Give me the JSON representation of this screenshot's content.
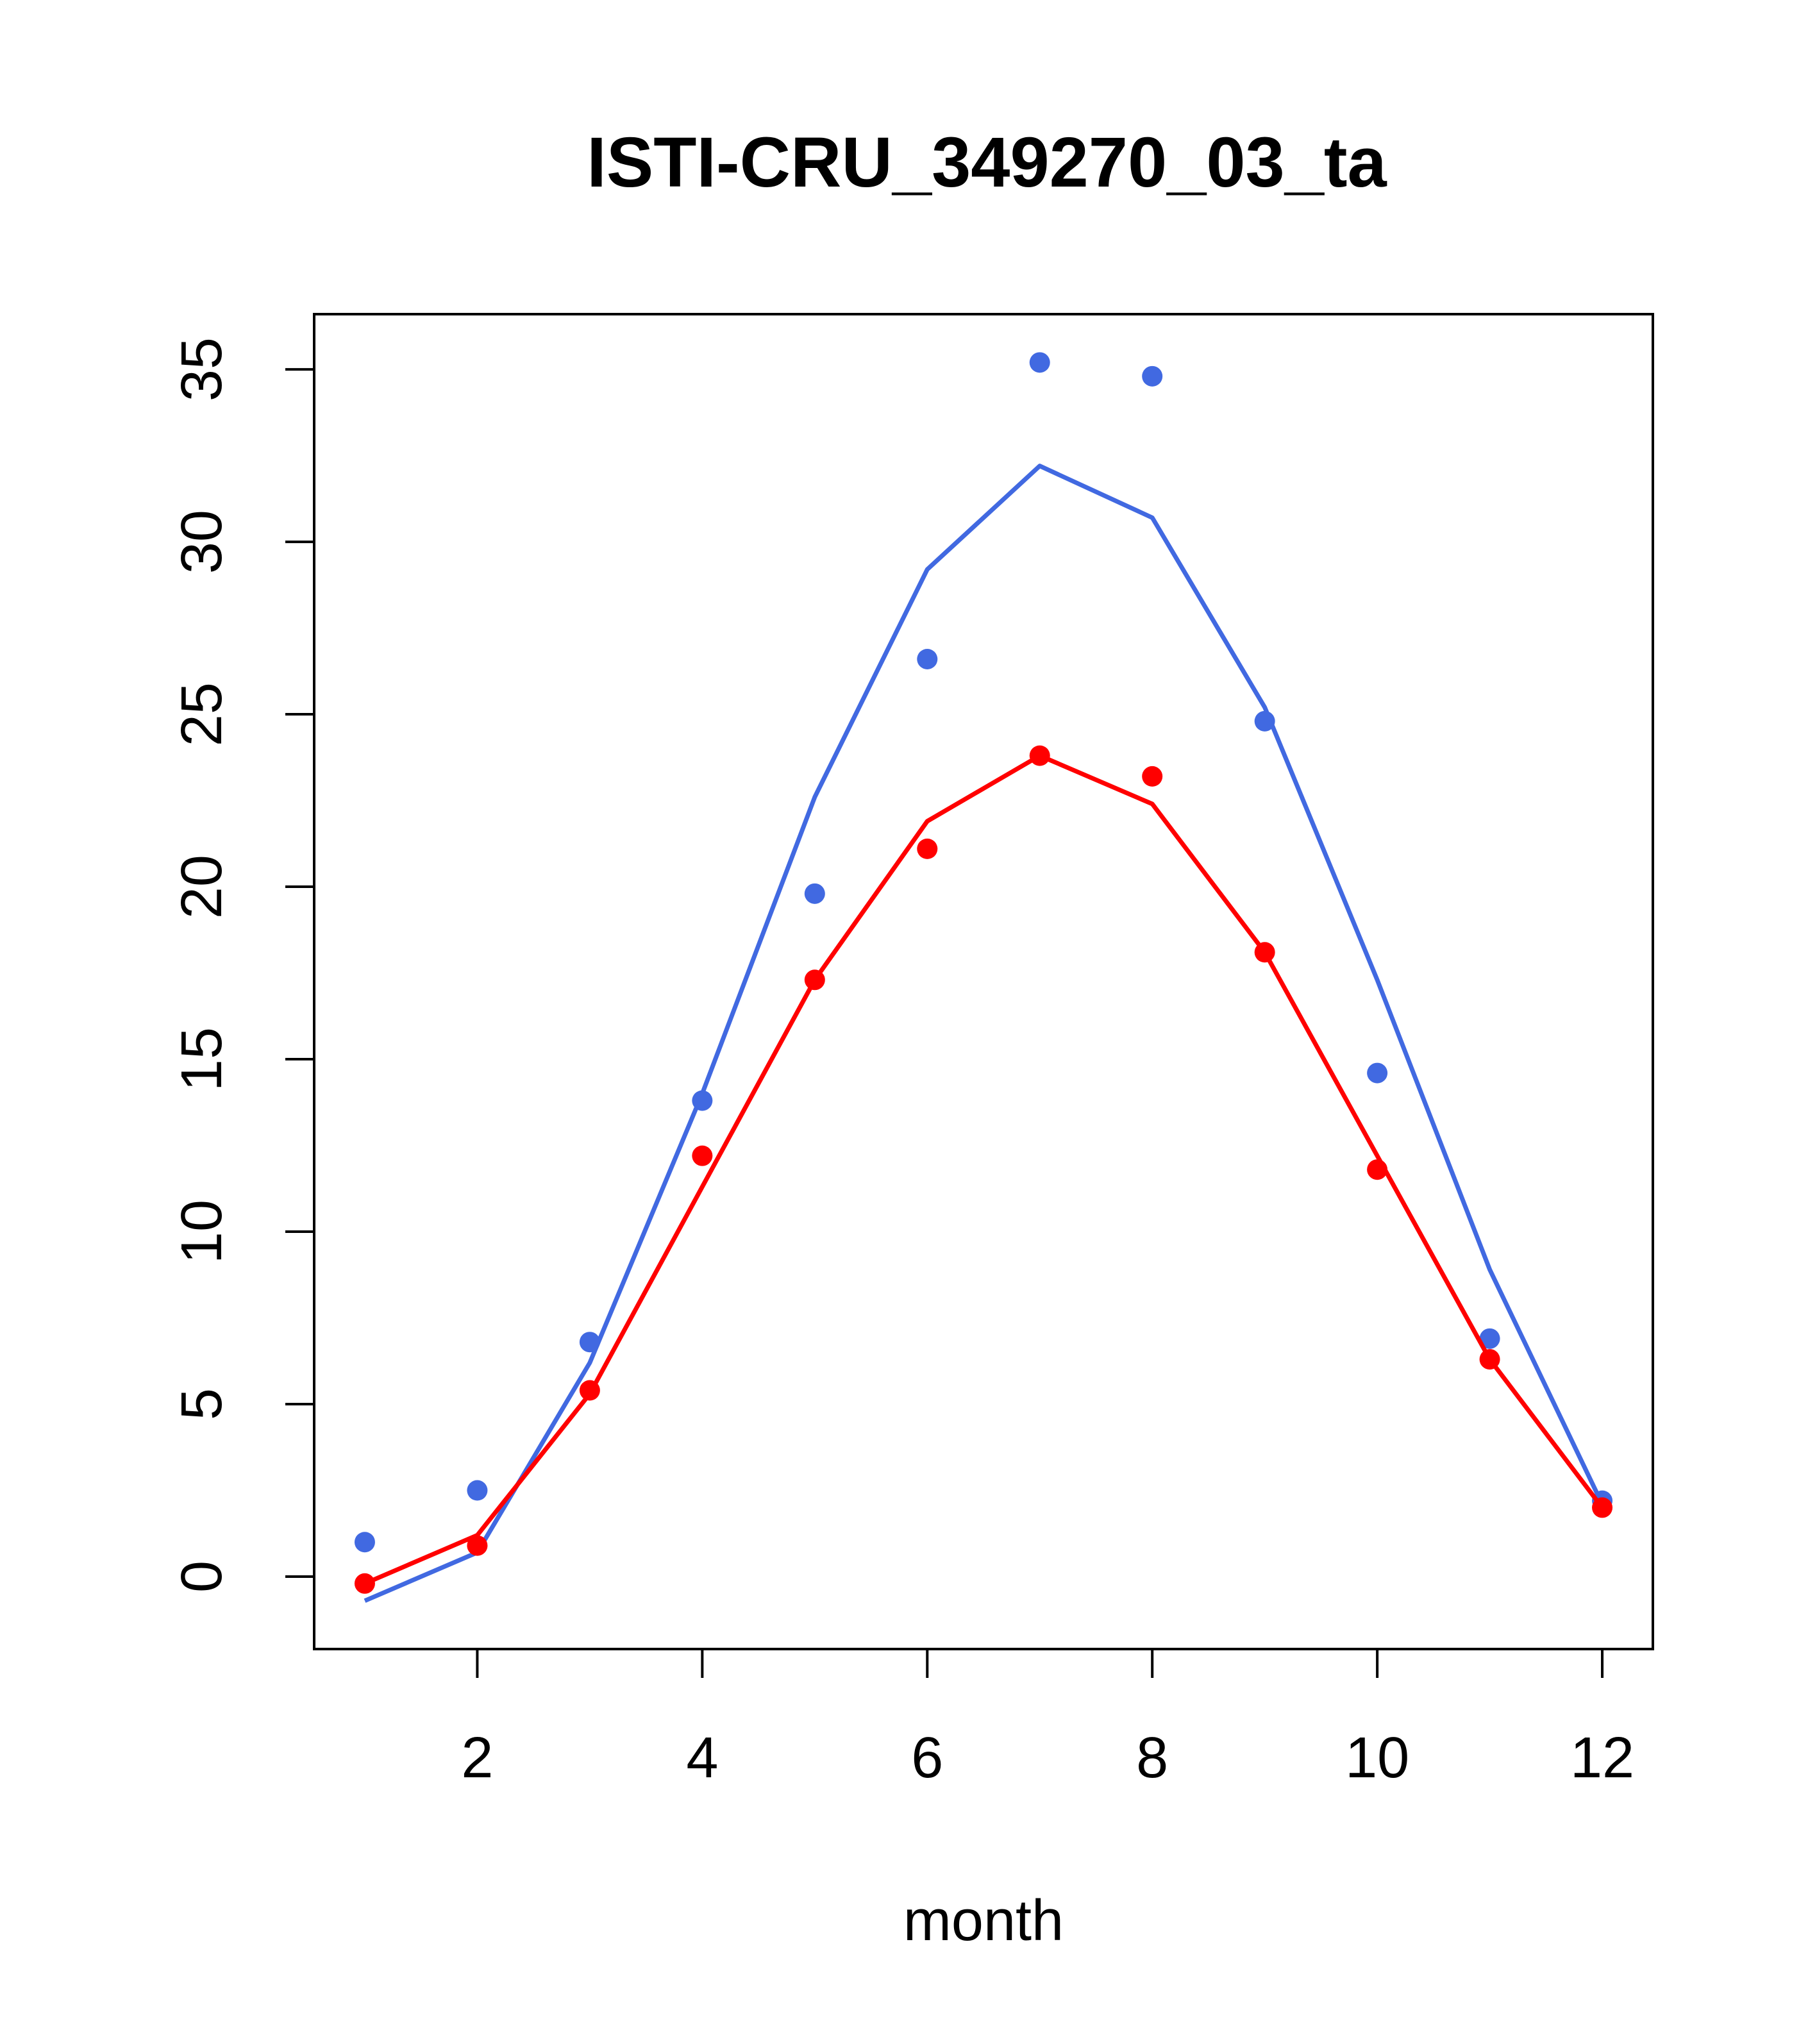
{
  "chart_data": {
    "type": "line",
    "title": "ISTI-CRU_349270_03_ta",
    "xlabel": "month",
    "ylabel": "",
    "xlim": [
      0.55,
      12.45
    ],
    "ylim": [
      -2.1,
      36.6
    ],
    "xticks": [
      2,
      4,
      6,
      8,
      10,
      12
    ],
    "yticks": [
      0,
      5,
      10,
      15,
      20,
      25,
      30,
      35
    ],
    "grid": false,
    "x": [
      1,
      2,
      3,
      4,
      5,
      6,
      7,
      8,
      9,
      10,
      11,
      12
    ],
    "series": [
      {
        "color": "#4169e1",
        "points": [
          1.0,
          2.5,
          6.8,
          13.8,
          19.8,
          26.6,
          35.2,
          34.8,
          24.8,
          14.6,
          6.9,
          2.2
        ],
        "line": [
          -0.7,
          0.7,
          6.2,
          14.0,
          22.6,
          29.2,
          32.2,
          30.7,
          25.2,
          17.3,
          8.9,
          2.1
        ]
      },
      {
        "color": "#ff0000",
        "points": [
          -0.2,
          0.9,
          5.4,
          12.2,
          17.3,
          21.1,
          23.8,
          23.2,
          18.1,
          11.8,
          6.3,
          2.0
        ],
        "line": [
          -0.2,
          1.2,
          5.3,
          11.3,
          17.3,
          21.9,
          23.8,
          22.4,
          18.1,
          12.2,
          6.3,
          2.0
        ]
      }
    ]
  }
}
